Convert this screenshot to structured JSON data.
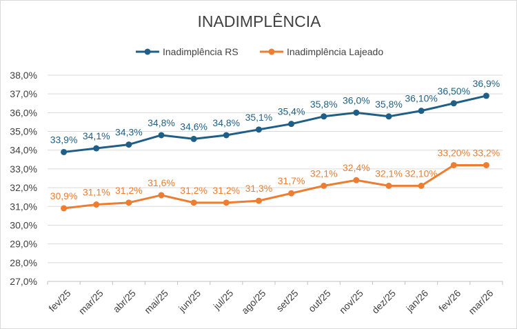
{
  "chart_data": {
    "type": "line",
    "title": "INADIMPLÊNCIA",
    "xlabel": "",
    "ylabel": "",
    "categories": [
      "fev/25",
      "mar/25",
      "abr/25",
      "mai/25",
      "jun/25",
      "jul/25",
      "ago/25",
      "set/25",
      "out/25",
      "nov/25",
      "dez/25",
      "jan/26",
      "fev/26",
      "mar/26"
    ],
    "ylim": [
      27.0,
      38.0
    ],
    "yticks": [
      "27,0%",
      "28,0%",
      "29,0%",
      "30,0%",
      "31,0%",
      "32,0%",
      "33,0%",
      "34,0%",
      "35,0%",
      "36,0%",
      "37,0%",
      "38,0%"
    ],
    "grid": "horizontal",
    "legend": "top-center",
    "series": [
      {
        "name": "Inadimplência RS",
        "color": "#1f5f86",
        "values": [
          33.9,
          34.1,
          34.3,
          34.8,
          34.6,
          34.8,
          35.1,
          35.4,
          35.8,
          36.0,
          35.8,
          36.1,
          36.5,
          36.9
        ],
        "labels": [
          "33,9%",
          "34,1%",
          "34,3%",
          "34,8%",
          "34,6%",
          "34,8%",
          "35,1%",
          "35,4%",
          "35,8%",
          "36,0%",
          "35,8%",
          "36,10%",
          "36,50%",
          "36,9%"
        ]
      },
      {
        "name": "Inadimplência Lajeado",
        "color": "#ec7d31",
        "values": [
          30.9,
          31.1,
          31.2,
          31.6,
          31.2,
          31.2,
          31.3,
          31.7,
          32.1,
          32.4,
          32.1,
          32.1,
          33.2,
          33.2
        ],
        "labels": [
          "30,9%",
          "31,1%",
          "31,2%",
          "31,6%",
          "31,2%",
          "31,2%",
          "31,3%",
          "31,7%",
          "32,1%",
          "32,4%",
          "32,1%",
          "32,10%",
          "33,20%",
          "33,2%"
        ]
      }
    ]
  }
}
